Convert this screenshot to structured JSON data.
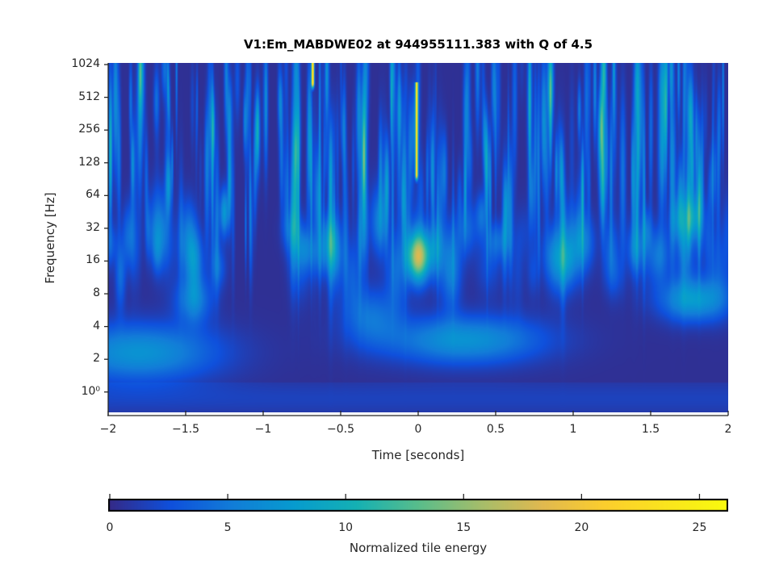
{
  "chart_data": {
    "type": "heatmap",
    "title": "V1:Em_MABDWE02 at 944955111.383 with Q of 4.5",
    "xlabel": "Time [seconds]",
    "ylabel": "Frequency [Hz]",
    "xlim": [
      -2,
      2
    ],
    "ylim": [
      0.65,
      1060
    ],
    "yscale": "log2",
    "xticks": [
      -2,
      -1.5,
      -1,
      -0.5,
      0,
      0.5,
      1,
      1.5,
      2
    ],
    "xtick_labels": [
      "−2",
      "−1.5",
      "−1",
      "−0.5",
      "0",
      "0.5",
      "1",
      "1.5",
      "2"
    ],
    "yticks": [
      1024,
      512,
      256,
      128,
      64,
      32,
      16,
      8,
      4,
      2,
      1
    ],
    "ytick_labels": [
      "1024",
      "512",
      "256",
      "128",
      "64",
      "32",
      "16",
      "8",
      "4",
      "2",
      "10⁰"
    ],
    "colorbar": {
      "label": "Normalized tile energy",
      "colormap": "parula",
      "range": [
        0,
        25.6
      ],
      "ticks": [
        0,
        5,
        10,
        15,
        20,
        25
      ],
      "tick_labels": [
        "0",
        "5",
        "10",
        "15",
        "20",
        "25"
      ]
    },
    "features": [
      {
        "name": "main-event",
        "t": 0.0,
        "f": 18,
        "energy": 13,
        "st": 0.045,
        "sf": 0.55
      },
      {
        "name": "chirp-track",
        "t": -0.01,
        "f_low": 100,
        "f_high": 700,
        "energy": 22
      },
      {
        "name": "top-spike",
        "t": -0.68,
        "f_low": 700,
        "f_high": 1060,
        "energy": 25
      },
      {
        "name": "low-band-left",
        "t": -1.8,
        "f": 2.3,
        "energy": 6.5,
        "st": 0.35,
        "sf": 0.6
      },
      {
        "name": "low-band-center",
        "t": 0.3,
        "f": 3.0,
        "energy": 6.5,
        "st": 0.35,
        "sf": 0.5
      },
      {
        "name": "low-band-right",
        "t": 1.78,
        "f": 7,
        "energy": 7,
        "st": 0.15,
        "sf": 0.45
      },
      {
        "name": "mid-blob-1",
        "t": -1.45,
        "f": 7,
        "energy": 5,
        "st": 0.08,
        "sf": 0.5
      },
      {
        "name": "mid-blob-2",
        "t": -1.25,
        "f": 45,
        "energy": 7,
        "st": 0.02,
        "sf": 0.5
      },
      {
        "name": "mid-blob-3",
        "t": -0.3,
        "f": 5,
        "energy": 4,
        "st": 0.12,
        "sf": 0.6
      },
      {
        "name": "mid-blob-4",
        "t": 0.9,
        "f": 16,
        "energy": 4.5,
        "st": 0.05,
        "sf": 0.7
      },
      {
        "name": "mid-blob-5",
        "t": 1.55,
        "f": 18,
        "energy": 4.5,
        "st": 0.05,
        "sf": 0.6
      }
    ]
  }
}
